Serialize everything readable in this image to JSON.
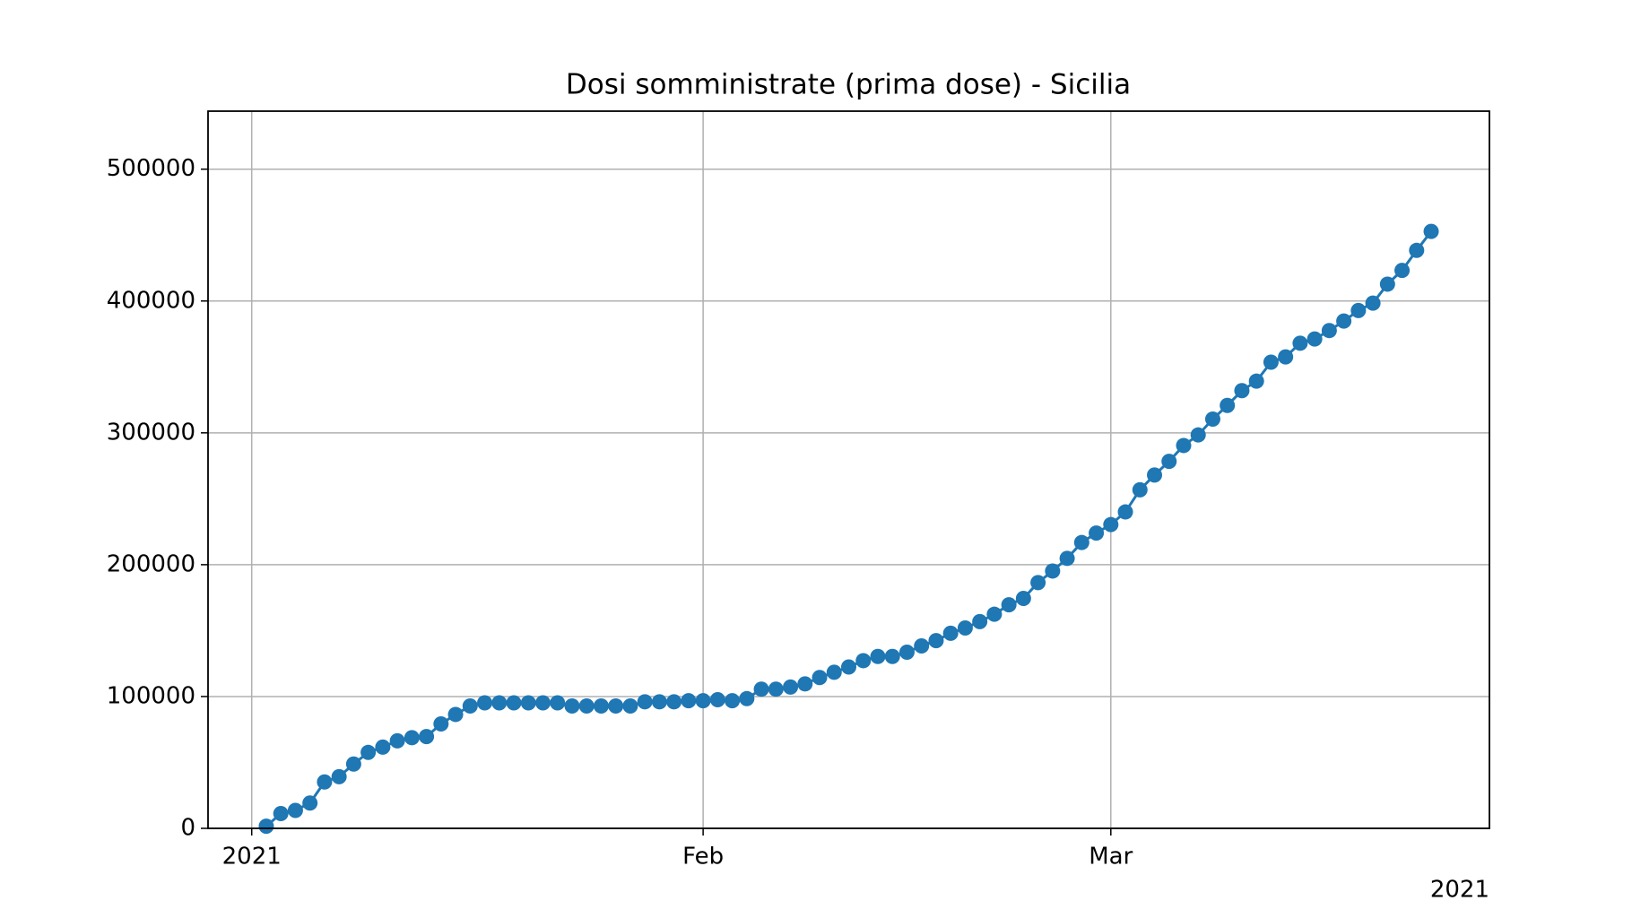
{
  "chart_data": {
    "type": "line",
    "title": "Dosi somministrate (prima dose) - Sicilia",
    "x": [
      "2021-01-02",
      "2021-01-03",
      "2021-01-04",
      "2021-01-05",
      "2021-01-06",
      "2021-01-07",
      "2021-01-08",
      "2021-01-09",
      "2021-01-10",
      "2021-01-11",
      "2021-01-12",
      "2021-01-13",
      "2021-01-14",
      "2021-01-15",
      "2021-01-16",
      "2021-01-17",
      "2021-01-18",
      "2021-01-19",
      "2021-01-20",
      "2021-01-21",
      "2021-01-22",
      "2021-01-23",
      "2021-01-24",
      "2021-01-25",
      "2021-01-26",
      "2021-01-27",
      "2021-01-28",
      "2021-01-29",
      "2021-01-30",
      "2021-01-31",
      "2021-02-01",
      "2021-02-02",
      "2021-02-03",
      "2021-02-04",
      "2021-02-05",
      "2021-02-06",
      "2021-02-07",
      "2021-02-08",
      "2021-02-09",
      "2021-02-10",
      "2021-02-11",
      "2021-02-12",
      "2021-02-13",
      "2021-02-14",
      "2021-02-15",
      "2021-02-16",
      "2021-02-17",
      "2021-02-18",
      "2021-02-19",
      "2021-02-20",
      "2021-02-21",
      "2021-02-22",
      "2021-02-23",
      "2021-02-24",
      "2021-02-25",
      "2021-02-26",
      "2021-02-27",
      "2021-02-28",
      "2021-03-01",
      "2021-03-02",
      "2021-03-03",
      "2021-03-04",
      "2021-03-05",
      "2021-03-06",
      "2021-03-07",
      "2021-03-08",
      "2021-03-09",
      "2021-03-10",
      "2021-03-11",
      "2021-03-12",
      "2021-03-13",
      "2021-03-14",
      "2021-03-15",
      "2021-03-16",
      "2021-03-17",
      "2021-03-18",
      "2021-03-19",
      "2021-03-20",
      "2021-03-21",
      "2021-03-22",
      "2021-03-23"
    ],
    "values": [
      1600,
      11200,
      13600,
      19200,
      35200,
      39200,
      48800,
      57600,
      61600,
      66400,
      68800,
      69600,
      79200,
      86400,
      92800,
      95200,
      95200,
      95200,
      95200,
      95200,
      95200,
      92800,
      92800,
      92800,
      92800,
      92800,
      96000,
      96000,
      96000,
      96800,
      96800,
      97600,
      96800,
      98400,
      105600,
      105600,
      107200,
      109600,
      114400,
      118400,
      122400,
      127200,
      130400,
      130400,
      133600,
      138400,
      142400,
      148000,
      152000,
      156800,
      162400,
      169600,
      174400,
      186400,
      195200,
      204800,
      216800,
      224000,
      230400,
      240000,
      256800,
      268000,
      278400,
      290400,
      298400,
      310400,
      320800,
      332000,
      339200,
      353600,
      357600,
      368000,
      371200,
      377600,
      384800,
      392800,
      398400,
      412800,
      423200,
      438400,
      452800
    ],
    "color": "#1f77b4",
    "xlim": [
      "2020-12-29",
      "2021-03-27"
    ],
    "xticks": [
      {
        "value": "2021-01-01",
        "label": "2021"
      },
      {
        "value": "2021-02-01",
        "label": "Feb"
      },
      {
        "value": "2021-03-01",
        "label": "Mar"
      }
    ],
    "x_offset_label": "2021",
    "ylim": [
      0,
      544000
    ],
    "yticks": [
      0,
      100000,
      200000,
      300000,
      400000,
      500000
    ],
    "grid": true
  }
}
